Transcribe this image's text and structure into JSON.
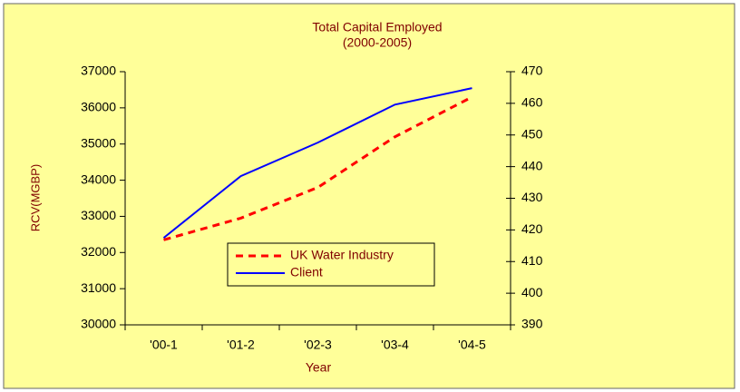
{
  "chart_data": {
    "type": "line",
    "title": "Total Capital Employed",
    "subtitle": "(2000-2005)",
    "x_label": "Year",
    "y_label": "RCV(MGBP)",
    "categories": [
      "'00-1",
      "'01-2",
      "'02-3",
      "'03-4",
      "'04-5"
    ],
    "series": [
      {
        "name": "UK Water Industry",
        "color": "#ff0000",
        "dash": true,
        "values": [
          32350,
          32950,
          33800,
          35200,
          36300
        ]
      },
      {
        "name": "Client",
        "color": "#0000ff",
        "dash": false,
        "axis": "y2",
        "values": [
          417.5,
          437,
          447.6,
          459.6,
          464.8
        ]
      }
    ],
    "ylim": [
      30000,
      37000
    ],
    "yticks": [
      30000,
      31000,
      32000,
      33000,
      34000,
      35000,
      36000,
      37000
    ],
    "y2lim": [
      390,
      470
    ],
    "y2ticks": [
      390,
      400,
      410,
      420,
      430,
      440,
      450,
      460,
      470
    ]
  }
}
